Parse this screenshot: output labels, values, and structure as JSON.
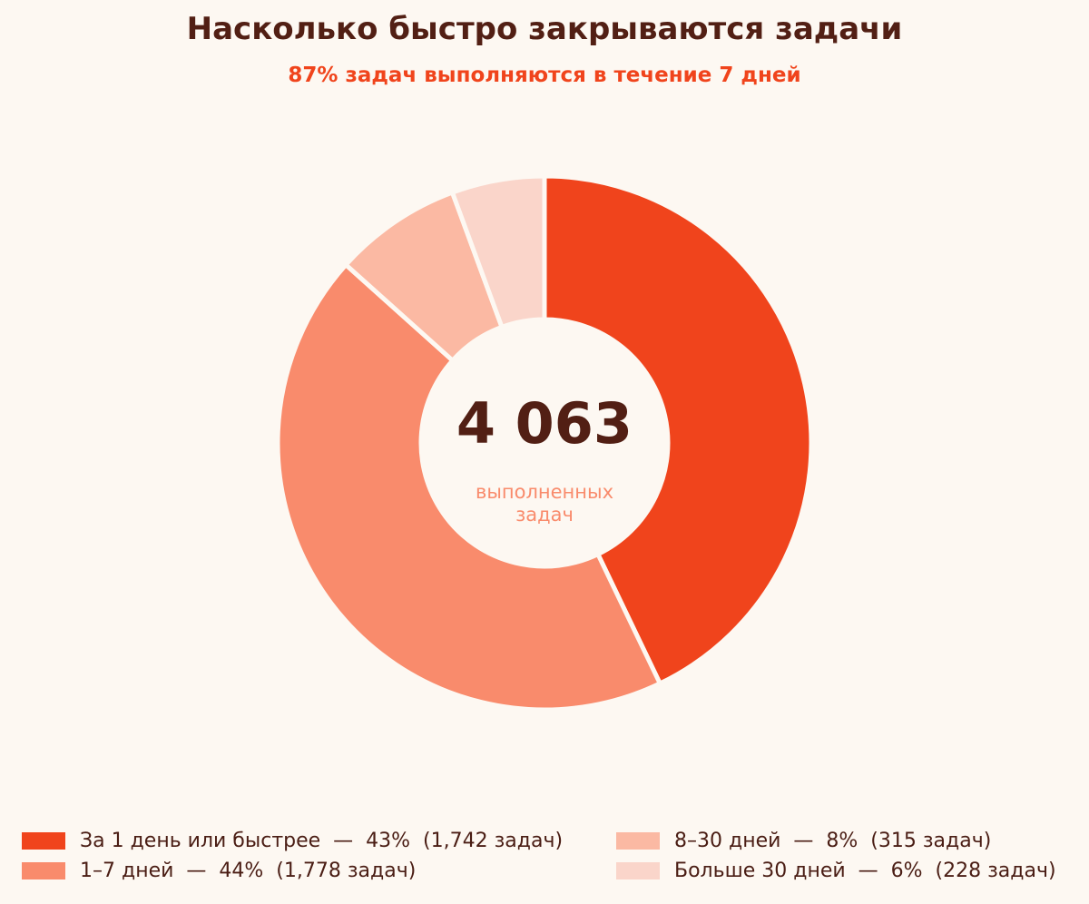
{
  "chart_data": {
    "type": "pie",
    "style": "donut",
    "title": "Насколько быстро закрываются задачи",
    "subtitle": "87% задач выполняются в течение 7 дней",
    "center_value": "4 063",
    "center_label_line1": "выполненных",
    "center_label_line2": "задач",
    "total": 4063,
    "categories": [
      {
        "label": "За 1 день или быстрее",
        "value": 1742,
        "percent": 43,
        "legend_text": "За 1 день или быстрее  —  43%  (1,742 задач)",
        "color": "#f0441c"
      },
      {
        "label": "1–7 дней",
        "value": 1778,
        "percent": 44,
        "legend_text": "1–7 дней  —  44%  (1,778 задач)",
        "color": "#f98b6c"
      },
      {
        "label": "8–30 дней",
        "value": 315,
        "percent": 8,
        "legend_text": "8–30 дней  —  8%  (315 задач)",
        "color": "#fbb9a3"
      },
      {
        "label": "Больше 30 дней",
        "value": 228,
        "percent": 6,
        "legend_text": "Больше 30 дней  —  6%  (228 задач)",
        "color": "#fad5ca"
      }
    ],
    "start_angle": "12 o'clock",
    "direction": "clockwise",
    "legend_placement": "bottom",
    "colors": {
      "background": "#fdf8f2",
      "title": "#521f14",
      "subtitle": "#f0441c",
      "center_value": "#521f14",
      "center_label": "#f98b6c",
      "separator": "#fdf8f2"
    }
  }
}
